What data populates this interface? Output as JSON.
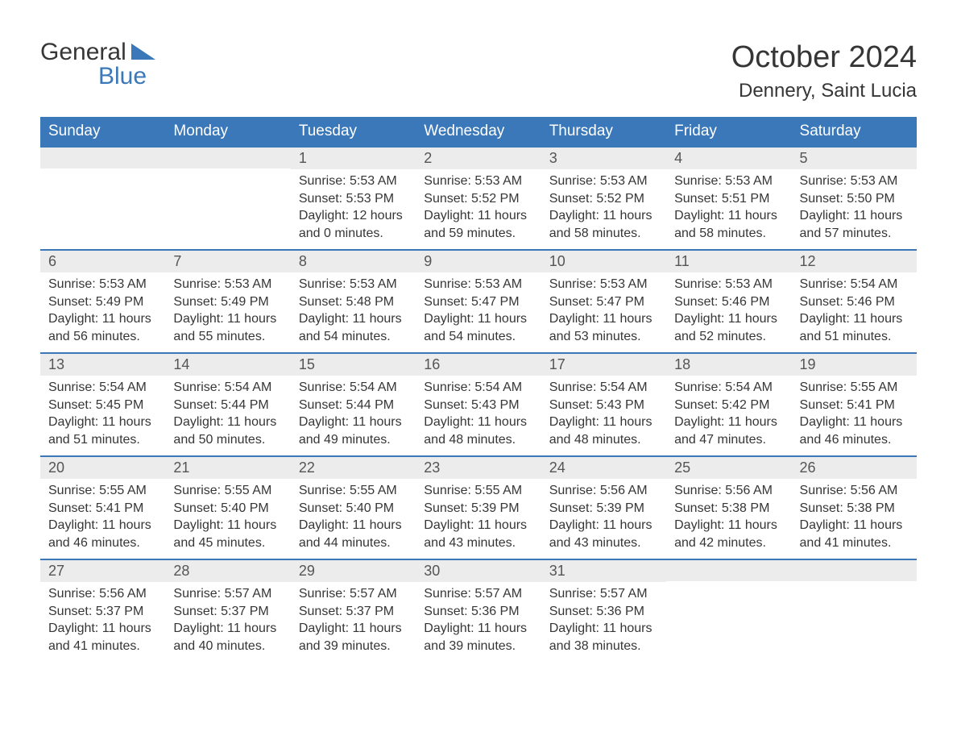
{
  "logo": {
    "line1": "General",
    "line2": "Blue",
    "flag_color": "#3a78b9"
  },
  "title": "October 2024",
  "location": "Dennery, Saint Lucia",
  "colors": {
    "header_bg": "#3a78b9",
    "header_text": "#ffffff",
    "daynum_bg": "#ececec",
    "border_top": "#3a78b9",
    "body_text": "#363636"
  },
  "weekdays": [
    "Sunday",
    "Monday",
    "Tuesday",
    "Wednesday",
    "Thursday",
    "Friday",
    "Saturday"
  ],
  "weeks": [
    [
      null,
      null,
      {
        "n": "1",
        "sr": "5:53 AM",
        "ss": "5:53 PM",
        "dl": "12 hours and 0 minutes."
      },
      {
        "n": "2",
        "sr": "5:53 AM",
        "ss": "5:52 PM",
        "dl": "11 hours and 59 minutes."
      },
      {
        "n": "3",
        "sr": "5:53 AM",
        "ss": "5:52 PM",
        "dl": "11 hours and 58 minutes."
      },
      {
        "n": "4",
        "sr": "5:53 AM",
        "ss": "5:51 PM",
        "dl": "11 hours and 58 minutes."
      },
      {
        "n": "5",
        "sr": "5:53 AM",
        "ss": "5:50 PM",
        "dl": "11 hours and 57 minutes."
      }
    ],
    [
      {
        "n": "6",
        "sr": "5:53 AM",
        "ss": "5:49 PM",
        "dl": "11 hours and 56 minutes."
      },
      {
        "n": "7",
        "sr": "5:53 AM",
        "ss": "5:49 PM",
        "dl": "11 hours and 55 minutes."
      },
      {
        "n": "8",
        "sr": "5:53 AM",
        "ss": "5:48 PM",
        "dl": "11 hours and 54 minutes."
      },
      {
        "n": "9",
        "sr": "5:53 AM",
        "ss": "5:47 PM",
        "dl": "11 hours and 54 minutes."
      },
      {
        "n": "10",
        "sr": "5:53 AM",
        "ss": "5:47 PM",
        "dl": "11 hours and 53 minutes."
      },
      {
        "n": "11",
        "sr": "5:53 AM",
        "ss": "5:46 PM",
        "dl": "11 hours and 52 minutes."
      },
      {
        "n": "12",
        "sr": "5:54 AM",
        "ss": "5:46 PM",
        "dl": "11 hours and 51 minutes."
      }
    ],
    [
      {
        "n": "13",
        "sr": "5:54 AM",
        "ss": "5:45 PM",
        "dl": "11 hours and 51 minutes."
      },
      {
        "n": "14",
        "sr": "5:54 AM",
        "ss": "5:44 PM",
        "dl": "11 hours and 50 minutes."
      },
      {
        "n": "15",
        "sr": "5:54 AM",
        "ss": "5:44 PM",
        "dl": "11 hours and 49 minutes."
      },
      {
        "n": "16",
        "sr": "5:54 AM",
        "ss": "5:43 PM",
        "dl": "11 hours and 48 minutes."
      },
      {
        "n": "17",
        "sr": "5:54 AM",
        "ss": "5:43 PM",
        "dl": "11 hours and 48 minutes."
      },
      {
        "n": "18",
        "sr": "5:54 AM",
        "ss": "5:42 PM",
        "dl": "11 hours and 47 minutes."
      },
      {
        "n": "19",
        "sr": "5:55 AM",
        "ss": "5:41 PM",
        "dl": "11 hours and 46 minutes."
      }
    ],
    [
      {
        "n": "20",
        "sr": "5:55 AM",
        "ss": "5:41 PM",
        "dl": "11 hours and 46 minutes."
      },
      {
        "n": "21",
        "sr": "5:55 AM",
        "ss": "5:40 PM",
        "dl": "11 hours and 45 minutes."
      },
      {
        "n": "22",
        "sr": "5:55 AM",
        "ss": "5:40 PM",
        "dl": "11 hours and 44 minutes."
      },
      {
        "n": "23",
        "sr": "5:55 AM",
        "ss": "5:39 PM",
        "dl": "11 hours and 43 minutes."
      },
      {
        "n": "24",
        "sr": "5:56 AM",
        "ss": "5:39 PM",
        "dl": "11 hours and 43 minutes."
      },
      {
        "n": "25",
        "sr": "5:56 AM",
        "ss": "5:38 PM",
        "dl": "11 hours and 42 minutes."
      },
      {
        "n": "26",
        "sr": "5:56 AM",
        "ss": "5:38 PM",
        "dl": "11 hours and 41 minutes."
      }
    ],
    [
      {
        "n": "27",
        "sr": "5:56 AM",
        "ss": "5:37 PM",
        "dl": "11 hours and 41 minutes."
      },
      {
        "n": "28",
        "sr": "5:57 AM",
        "ss": "5:37 PM",
        "dl": "11 hours and 40 minutes."
      },
      {
        "n": "29",
        "sr": "5:57 AM",
        "ss": "5:37 PM",
        "dl": "11 hours and 39 minutes."
      },
      {
        "n": "30",
        "sr": "5:57 AM",
        "ss": "5:36 PM",
        "dl": "11 hours and 39 minutes."
      },
      {
        "n": "31",
        "sr": "5:57 AM",
        "ss": "5:36 PM",
        "dl": "11 hours and 38 minutes."
      },
      null,
      null
    ]
  ],
  "labels": {
    "sunrise": "Sunrise: ",
    "sunset": "Sunset: ",
    "daylight": "Daylight: "
  }
}
